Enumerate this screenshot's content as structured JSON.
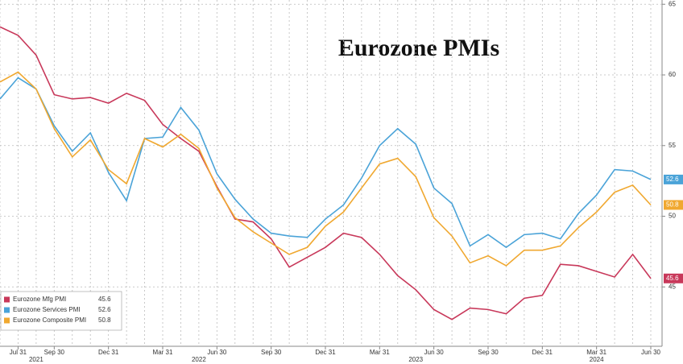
{
  "chart_data": {
    "type": "line",
    "title": "Eurozone PMIs",
    "categories": [
      null,
      "Jul 31",
      null,
      "Sep 30",
      null,
      null,
      "Dec 31",
      null,
      null,
      "Mar 31",
      null,
      null,
      "Jun 30",
      null,
      null,
      "Sep 30",
      null,
      null,
      "Dec 31",
      null,
      null,
      "Mar 31",
      null,
      null,
      "Jun 30",
      null,
      null,
      "Sep 30",
      null,
      null,
      "Dec 31",
      null,
      null,
      "Mar 31",
      null,
      null,
      "Jun 30"
    ],
    "years": [
      "2021",
      "2022",
      "2023",
      "2024"
    ],
    "series": [
      {
        "name": "Eurozone Mfg PMI",
        "color": "#c8385a",
        "values": [
          63.4,
          62.8,
          61.4,
          58.6,
          58.3,
          58.4,
          58.0,
          58.7,
          58.2,
          56.5,
          55.5,
          54.6,
          52.1,
          49.8,
          49.6,
          48.4,
          46.4,
          47.1,
          47.8,
          48.8,
          48.5,
          47.3,
          45.8,
          44.8,
          43.4,
          42.7,
          43.5,
          43.4,
          43.1,
          44.2,
          44.4,
          46.6,
          46.5,
          46.1,
          45.7,
          47.3,
          45.6
        ]
      },
      {
        "name": "Eurozone Services PMI",
        "color": "#4aa3d8",
        "values": [
          58.3,
          59.8,
          59.0,
          56.4,
          54.6,
          55.9,
          53.1,
          51.1,
          55.5,
          55.6,
          57.7,
          56.1,
          53.0,
          51.2,
          49.8,
          48.8,
          48.6,
          48.5,
          49.8,
          50.8,
          52.7,
          55.0,
          56.2,
          55.1,
          52.0,
          50.9,
          47.9,
          48.7,
          47.8,
          48.7,
          48.8,
          48.4,
          50.2,
          51.5,
          53.3,
          53.2,
          52.6
        ]
      },
      {
        "name": "Eurozone Composite PMI",
        "color": "#f0a830",
        "values": [
          59.5,
          60.2,
          59.0,
          56.2,
          54.2,
          55.4,
          53.3,
          52.3,
          55.5,
          54.9,
          55.8,
          54.8,
          52.0,
          49.9,
          48.9,
          48.1,
          47.3,
          47.8,
          49.3,
          50.3,
          52.0,
          53.7,
          54.1,
          52.8,
          49.9,
          48.6,
          46.7,
          47.2,
          46.5,
          47.6,
          47.6,
          47.9,
          49.2,
          50.3,
          51.7,
          52.2,
          50.8
        ]
      }
    ],
    "ylim": [
      40.8,
      65.3
    ],
    "yticks": [
      45,
      50,
      55,
      60,
      65
    ],
    "grid": true,
    "legend": "lower left"
  }
}
